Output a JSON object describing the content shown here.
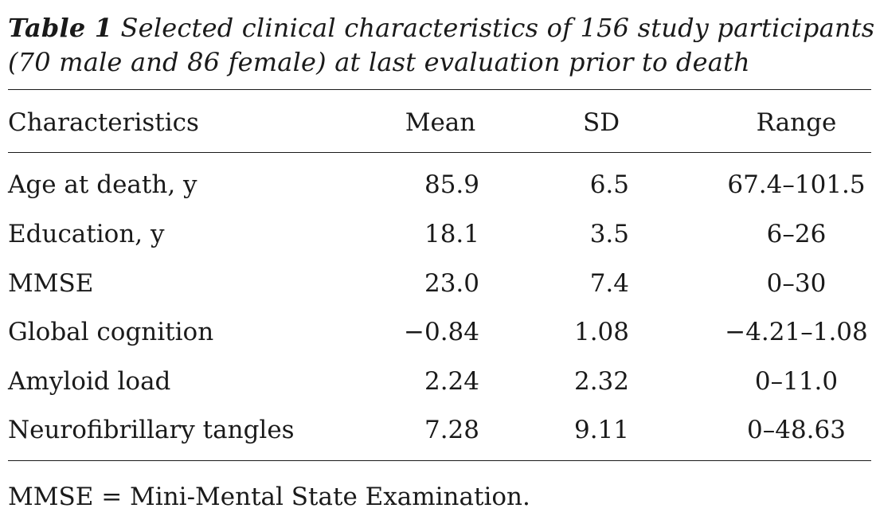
{
  "caption": {
    "label": "Table 1",
    "line1_rest": " Selected clinical characteristics of 156 study participants",
    "line2": "(70 male and 86 female) at last evaluation prior to death"
  },
  "table": {
    "columns": [
      "Characteristics",
      "Mean",
      "SD",
      "Range"
    ],
    "rows": [
      {
        "characteristic": "Age at death, y",
        "mean": "85.9",
        "sd": "6.5",
        "range": "67.4–101.5"
      },
      {
        "characteristic": "Education, y",
        "mean": "18.1",
        "sd": "3.5",
        "range": "6–26"
      },
      {
        "characteristic": "MMSE",
        "mean": "23.0",
        "sd": "7.4",
        "range": "0–30"
      },
      {
        "characteristic": "Global cognition",
        "mean": "−0.84",
        "sd": "1.08",
        "range": "−4.21–1.08"
      },
      {
        "characteristic": "Amyloid load",
        "mean": "2.24",
        "sd": "2.32",
        "range": "0–11.0"
      },
      {
        "characteristic": "Neurofibrillary tangles",
        "mean": "7.28",
        "sd": "9.11",
        "range": "0–48.63"
      }
    ]
  },
  "footnote": "MMSE = Mini-Mental State Examination."
}
